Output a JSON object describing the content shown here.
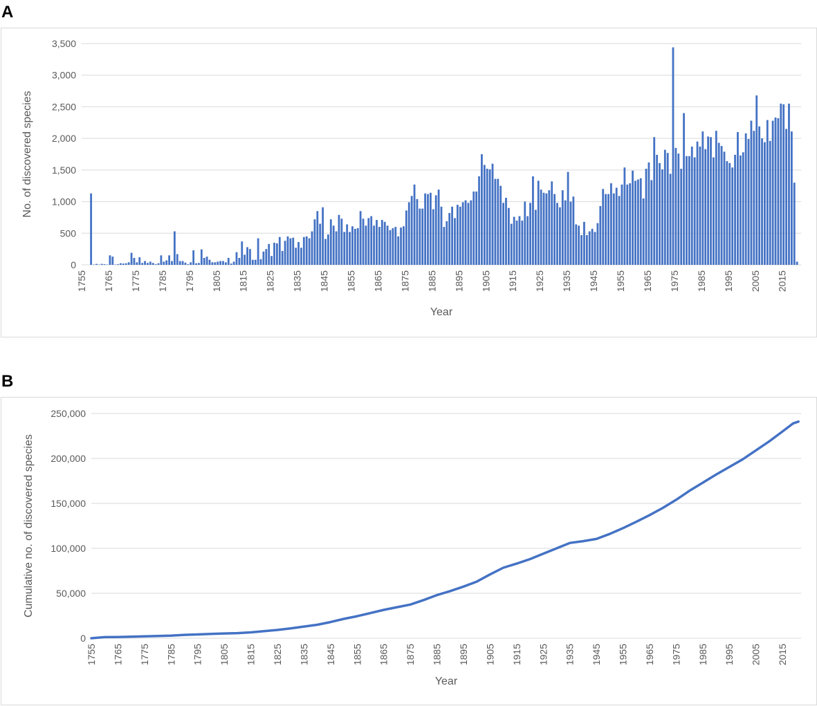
{
  "panels": {
    "a_label": "A",
    "b_label": "B"
  },
  "chart_data": [
    {
      "type": "bar",
      "xlabel": "Year",
      "ylabel": "No. of discovered species",
      "ylim": [
        0,
        3500
      ],
      "yticks": [
        0,
        500,
        1000,
        1500,
        2000,
        2500,
        3000,
        3500
      ],
      "ytick_labels": [
        "0",
        "500",
        "1,000",
        "1,500",
        "2,000",
        "2,500",
        "3,000",
        "3,500"
      ],
      "xlim": [
        1755,
        2022
      ],
      "xticks": [
        1755,
        1765,
        1775,
        1785,
        1795,
        1805,
        1815,
        1825,
        1835,
        1845,
        1855,
        1865,
        1875,
        1885,
        1895,
        1905,
        1915,
        1925,
        1935,
        1945,
        1955,
        1965,
        1975,
        1985,
        1995,
        2005,
        2015
      ],
      "grid": true,
      "color": "#4472c4",
      "x_start": 1758,
      "values": [
        1130,
        5,
        15,
        5,
        15,
        10,
        5,
        150,
        130,
        5,
        10,
        25,
        20,
        25,
        40,
        190,
        110,
        40,
        120,
        30,
        60,
        30,
        50,
        30,
        10,
        25,
        150,
        50,
        70,
        150,
        60,
        530,
        170,
        60,
        60,
        35,
        10,
        40,
        230,
        25,
        30,
        245,
        110,
        130,
        80,
        40,
        40,
        50,
        60,
        60,
        40,
        110,
        20,
        50,
        200,
        110,
        370,
        160,
        280,
        250,
        80,
        80,
        420,
        90,
        210,
        250,
        330,
        140,
        350,
        340,
        440,
        220,
        380,
        450,
        420,
        430,
        270,
        360,
        270,
        440,
        450,
        420,
        530,
        720,
        850,
        650,
        910,
        410,
        480,
        720,
        620,
        530,
        790,
        730,
        520,
        640,
        520,
        610,
        570,
        580,
        850,
        730,
        620,
        740,
        770,
        620,
        710,
        600,
        710,
        680,
        620,
        550,
        580,
        600,
        450,
        590,
        610,
        860,
        990,
        1090,
        1270,
        1040,
        890,
        890,
        1130,
        1120,
        1140,
        880,
        1100,
        1190,
        920,
        600,
        690,
        820,
        920,
        740,
        950,
        920,
        990,
        1020,
        980,
        1020,
        1160,
        1160,
        1400,
        1750,
        1580,
        1520,
        1510,
        1600,
        1360,
        1360,
        1250,
        980,
        1060,
        900,
        650,
        760,
        700,
        770,
        700,
        1000,
        770,
        980,
        1400,
        870,
        1330,
        1190,
        1140,
        1130,
        1180,
        1320,
        1120,
        980,
        910,
        1180,
        1020,
        1470,
        1000,
        1080,
        640,
        620,
        470,
        680,
        470,
        530,
        570,
        520,
        660,
        930,
        1200,
        1120,
        1120,
        1290,
        1130,
        1220,
        1090,
        1270,
        1540,
        1270,
        1290,
        1490,
        1330,
        1350,
        1370,
        1050,
        1520,
        1620,
        1340,
        2020,
        1740,
        1610,
        1510,
        1820,
        1770,
        1440,
        3440,
        1850,
        1760,
        1520,
        2400,
        1720,
        1720,
        1870,
        1700,
        1950,
        1870,
        2110,
        1830,
        2030,
        2020,
        1700,
        2120,
        1930,
        1880,
        1790,
        1640,
        1610,
        1540,
        1740,
        2100,
        1730,
        1780,
        2080,
        1990,
        2280,
        2120,
        2680,
        2190,
        2000,
        1940,
        2290,
        1960,
        2280,
        2330,
        2320,
        2550,
        2540,
        2150,
        2550,
        2110,
        1300,
        50
      ]
    },
    {
      "type": "line",
      "xlabel": "Year",
      "ylabel": "Cumulative no. of discovered species",
      "ylim": [
        0,
        250000
      ],
      "yticks": [
        0,
        50000,
        100000,
        150000,
        200000,
        250000
      ],
      "ytick_labels": [
        "0",
        "50,000",
        "100,000",
        "150,000",
        "200,000",
        "250,000"
      ],
      "xlim": [
        1755,
        2022
      ],
      "xticks": [
        1755,
        1765,
        1775,
        1785,
        1795,
        1805,
        1815,
        1825,
        1835,
        1845,
        1855,
        1865,
        1875,
        1885,
        1895,
        1905,
        1915,
        1925,
        1935,
        1945,
        1955,
        1965,
        1975,
        1985,
        1995,
        2005,
        2015
      ],
      "grid": true,
      "color": "#4472c4",
      "x": [
        1755,
        1760,
        1765,
        1770,
        1775,
        1780,
        1785,
        1790,
        1795,
        1800,
        1805,
        1810,
        1815,
        1820,
        1825,
        1830,
        1835,
        1840,
        1845,
        1850,
        1855,
        1860,
        1865,
        1870,
        1875,
        1880,
        1885,
        1890,
        1895,
        1900,
        1905,
        1910,
        1915,
        1920,
        1925,
        1930,
        1935,
        1940,
        1945,
        1950,
        1955,
        1960,
        1965,
        1970,
        1975,
        1980,
        1985,
        1990,
        1995,
        2000,
        2005,
        2010,
        2015,
        2019,
        2021
      ],
      "y": [
        0,
        1200,
        1400,
        1700,
        2100,
        2500,
        2900,
        3800,
        4200,
        4800,
        5300,
        5700,
        6500,
        7900,
        9200,
        11000,
        13000,
        15000,
        18000,
        21500,
        24500,
        28000,
        31500,
        34500,
        37500,
        42500,
        48000,
        52500,
        57500,
        63000,
        71000,
        78500,
        83000,
        88000,
        94000,
        100000,
        106000,
        108000,
        110500,
        116000,
        122500,
        129500,
        137000,
        145000,
        154000,
        164000,
        173000,
        182000,
        190500,
        199000,
        209000,
        219000,
        230000,
        239000,
        241000
      ]
    }
  ]
}
